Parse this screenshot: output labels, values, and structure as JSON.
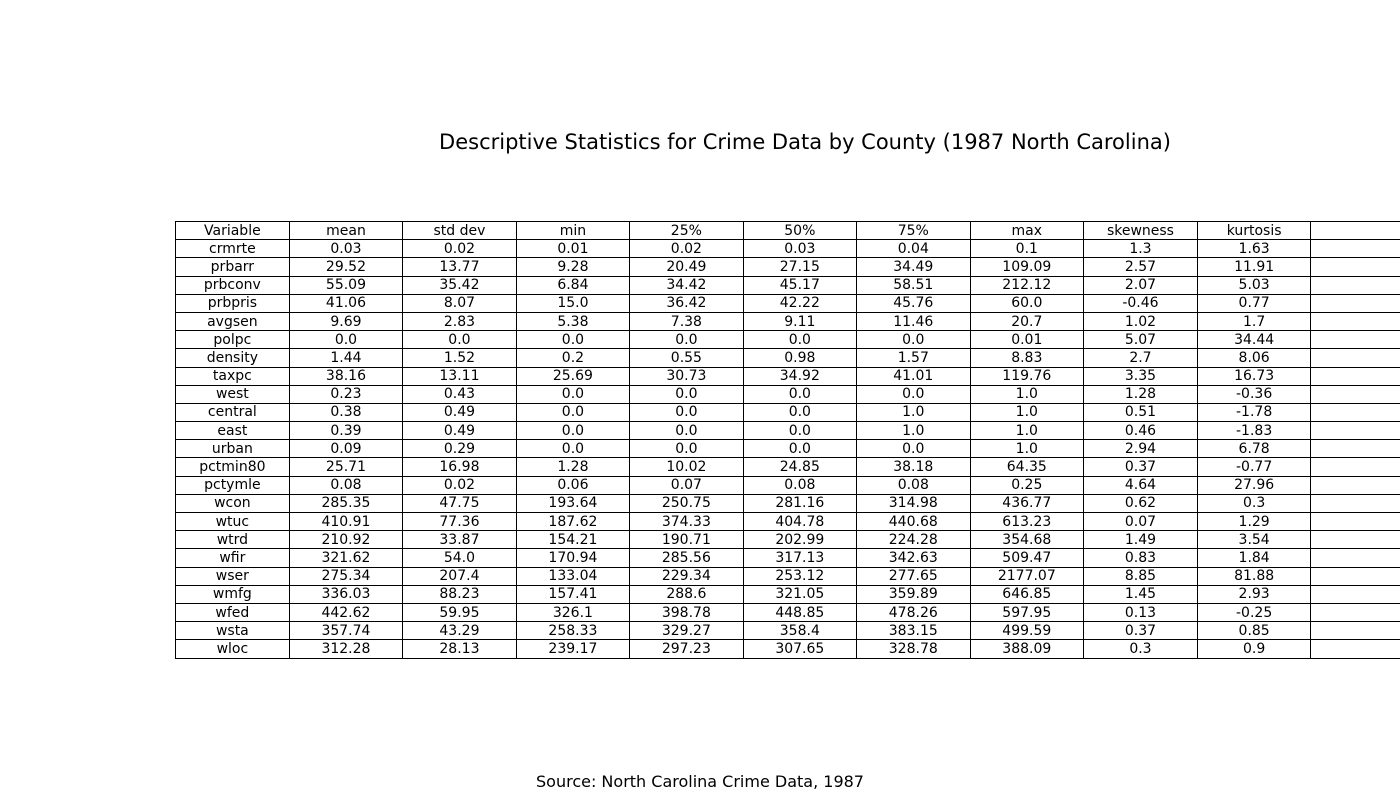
{
  "chart_data": {
    "type": "table",
    "title": "Descriptive Statistics for Crime Data by County (1987 North Carolina)",
    "source": "Source: North Carolina Crime Data, 1987",
    "columns": [
      "Variable",
      "mean",
      "std dev",
      "min",
      "25%",
      "50%",
      "75%",
      "max",
      "skewness",
      "kurtosis"
    ],
    "rows": [
      [
        "crmrte",
        "0.03",
        "0.02",
        "0.01",
        "0.02",
        "0.03",
        "0.04",
        "0.1",
        "1.3",
        "1.63"
      ],
      [
        "prbarr",
        "29.52",
        "13.77",
        "9.28",
        "20.49",
        "27.15",
        "34.49",
        "109.09",
        "2.57",
        "11.91"
      ],
      [
        "prbconv",
        "55.09",
        "35.42",
        "6.84",
        "34.42",
        "45.17",
        "58.51",
        "212.12",
        "2.07",
        "5.03"
      ],
      [
        "prbpris",
        "41.06",
        "8.07",
        "15.0",
        "36.42",
        "42.22",
        "45.76",
        "60.0",
        "-0.46",
        "0.77"
      ],
      [
        "avgsen",
        "9.69",
        "2.83",
        "5.38",
        "7.38",
        "9.11",
        "11.46",
        "20.7",
        "1.02",
        "1.7"
      ],
      [
        "polpc",
        "0.0",
        "0.0",
        "0.0",
        "0.0",
        "0.0",
        "0.0",
        "0.01",
        "5.07",
        "34.44"
      ],
      [
        "density",
        "1.44",
        "1.52",
        "0.2",
        "0.55",
        "0.98",
        "1.57",
        "8.83",
        "2.7",
        "8.06"
      ],
      [
        "taxpc",
        "38.16",
        "13.11",
        "25.69",
        "30.73",
        "34.92",
        "41.01",
        "119.76",
        "3.35",
        "16.73"
      ],
      [
        "west",
        "0.23",
        "0.43",
        "0.0",
        "0.0",
        "0.0",
        "0.0",
        "1.0",
        "1.28",
        "-0.36"
      ],
      [
        "central",
        "0.38",
        "0.49",
        "0.0",
        "0.0",
        "0.0",
        "1.0",
        "1.0",
        "0.51",
        "-1.78"
      ],
      [
        "east",
        "0.39",
        "0.49",
        "0.0",
        "0.0",
        "0.0",
        "1.0",
        "1.0",
        "0.46",
        "-1.83"
      ],
      [
        "urban",
        "0.09",
        "0.29",
        "0.0",
        "0.0",
        "0.0",
        "0.0",
        "1.0",
        "2.94",
        "6.78"
      ],
      [
        "pctmin80",
        "25.71",
        "16.98",
        "1.28",
        "10.02",
        "24.85",
        "38.18",
        "64.35",
        "0.37",
        "-0.77"
      ],
      [
        "pctymle",
        "0.08",
        "0.02",
        "0.06",
        "0.07",
        "0.08",
        "0.08",
        "0.25",
        "4.64",
        "27.96"
      ],
      [
        "wcon",
        "285.35",
        "47.75",
        "193.64",
        "250.75",
        "281.16",
        "314.98",
        "436.77",
        "0.62",
        "0.3"
      ],
      [
        "wtuc",
        "410.91",
        "77.36",
        "187.62",
        "374.33",
        "404.78",
        "440.68",
        "613.23",
        "0.07",
        "1.29"
      ],
      [
        "wtrd",
        "210.92",
        "33.87",
        "154.21",
        "190.71",
        "202.99",
        "224.28",
        "354.68",
        "1.49",
        "3.54"
      ],
      [
        "wfir",
        "321.62",
        "54.0",
        "170.94",
        "285.56",
        "317.13",
        "342.63",
        "509.47",
        "0.83",
        "1.84"
      ],
      [
        "wser",
        "275.34",
        "207.4",
        "133.04",
        "229.34",
        "253.12",
        "277.65",
        "2177.07",
        "8.85",
        "81.88"
      ],
      [
        "wmfg",
        "336.03",
        "88.23",
        "157.41",
        "288.6",
        "321.05",
        "359.89",
        "646.85",
        "1.45",
        "2.93"
      ],
      [
        "wfed",
        "442.62",
        "59.95",
        "326.1",
        "398.78",
        "448.85",
        "478.26",
        "597.95",
        "0.13",
        "-0.25"
      ],
      [
        "wsta",
        "357.74",
        "43.29",
        "258.33",
        "329.27",
        "358.4",
        "383.15",
        "499.59",
        "0.37",
        "0.85"
      ],
      [
        "wloc",
        "312.28",
        "28.13",
        "239.17",
        "297.23",
        "307.65",
        "328.78",
        "388.09",
        "0.3",
        "0.9"
      ]
    ]
  }
}
